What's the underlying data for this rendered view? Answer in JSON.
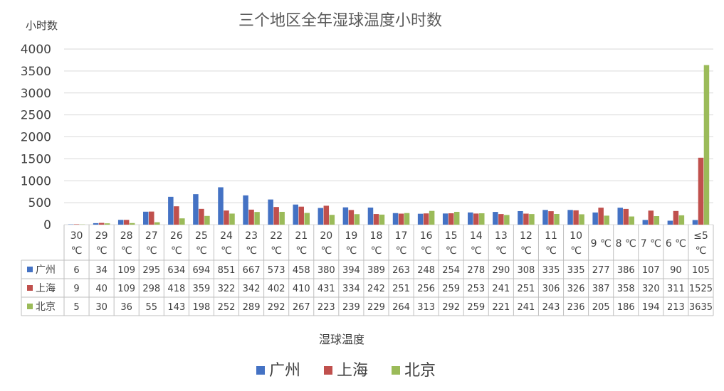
{
  "chart_data": {
    "type": "bar",
    "title": "三个地区全年湿球温度小时数",
    "ylabel": "小时数",
    "xlabel": "湿球温度",
    "ylim": [
      0,
      4000
    ],
    "yticks": [
      0,
      500,
      1000,
      1500,
      2000,
      2500,
      3000,
      3500,
      4000
    ],
    "grid": true,
    "legend_position": "bottom",
    "data_table": true,
    "categories": [
      [
        "30",
        "℃"
      ],
      [
        "29",
        "℃"
      ],
      [
        "28",
        "℃"
      ],
      [
        "27",
        "℃"
      ],
      [
        "26",
        "℃"
      ],
      [
        "25",
        "℃"
      ],
      [
        "24",
        "℃"
      ],
      [
        "23",
        "℃"
      ],
      [
        "22",
        "℃"
      ],
      [
        "21",
        "℃"
      ],
      [
        "20",
        "℃"
      ],
      [
        "19",
        "℃"
      ],
      [
        "18",
        "℃"
      ],
      [
        "17",
        "℃"
      ],
      [
        "16",
        "℃"
      ],
      [
        "15",
        "℃"
      ],
      [
        "14",
        "℃"
      ],
      [
        "13",
        "℃"
      ],
      [
        "12",
        "℃"
      ],
      [
        "11",
        "℃"
      ],
      [
        "10",
        "℃"
      ],
      [
        "9 ℃"
      ],
      [
        "8 ℃"
      ],
      [
        "7 ℃"
      ],
      [
        "6 ℃"
      ],
      [
        "≤5",
        "℃"
      ]
    ],
    "series": [
      {
        "name": "广州",
        "color": "#4472C4",
        "values": [
          6,
          34,
          109,
          295,
          634,
          694,
          851,
          667,
          573,
          458,
          380,
          394,
          389,
          263,
          248,
          254,
          278,
          290,
          308,
          335,
          335,
          277,
          386,
          107,
          90,
          105
        ]
      },
      {
        "name": "上海",
        "color": "#C0504D",
        "values": [
          9,
          40,
          109,
          298,
          418,
          359,
          322,
          342,
          402,
          410,
          431,
          334,
          242,
          251,
          256,
          259,
          253,
          241,
          251,
          306,
          326,
          387,
          358,
          320,
          311,
          1525
        ]
      },
      {
        "name": "北京",
        "color": "#9BBB59",
        "values": [
          5,
          30,
          36,
          55,
          143,
          198,
          252,
          289,
          292,
          267,
          223,
          239,
          229,
          264,
          313,
          292,
          259,
          221,
          241,
          243,
          236,
          205,
          186,
          194,
          213,
          3635
        ]
      }
    ]
  }
}
